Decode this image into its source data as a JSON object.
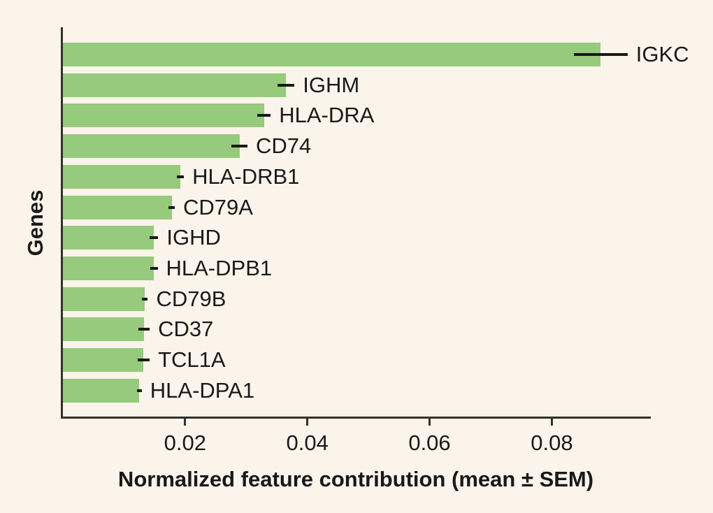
{
  "colors": {
    "background": "#faf4ea",
    "bar_fill": "#96ca7c",
    "spine": "#33312b",
    "error_bar": "#191919",
    "text": "#191919"
  },
  "chart_data": {
    "type": "bar",
    "orientation": "horizontal",
    "title": "",
    "xlabel": "Normalized feature contribution (mean ± SEM)",
    "ylabel": "Genes",
    "xlim": [
      0,
      0.0962
    ],
    "xticks": [
      0.02,
      0.04,
      0.06,
      0.08
    ],
    "xtick_labels": [
      "0.02",
      "0.04",
      "0.06",
      "0.08"
    ],
    "grid": false,
    "legend": false,
    "categories": [
      "IGKC",
      "IGHM",
      "HLA-DRA",
      "CD74",
      "HLA-DRB1",
      "CD79A",
      "IGHD",
      "HLA-DPB1",
      "CD79B",
      "CD37",
      "TCL1A",
      "HLA-DPA1"
    ],
    "series": [
      {
        "name": "Normalized feature contribution (mean)",
        "values": [
          0.088,
          0.0365,
          0.0329,
          0.0289,
          0.0192,
          0.0178,
          0.0149,
          0.0149,
          0.0134,
          0.0133,
          0.0132,
          0.0125
        ],
        "sems": [
          0.0044,
          0.0014,
          0.0011,
          0.0013,
          0.0006,
          0.0005,
          0.0007,
          0.0006,
          0.0005,
          0.0009,
          0.001,
          0.0004
        ]
      }
    ]
  }
}
